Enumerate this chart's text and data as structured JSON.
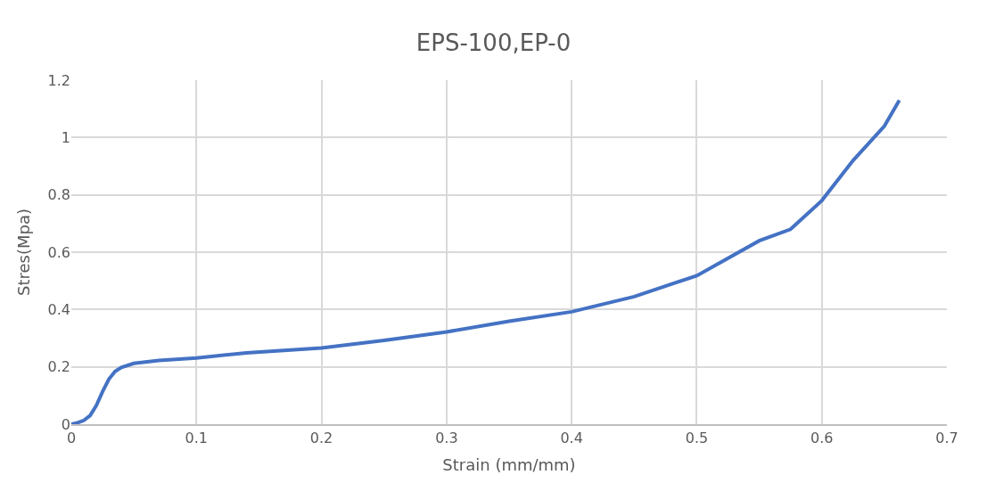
{
  "chart_data": {
    "type": "line",
    "title": "EPS-100,EP-0",
    "xlabel": "Strain (mm/mm)",
    "ylabel": "Stres(Mpa)",
    "x": [
      0,
      0.005,
      0.01,
      0.015,
      0.02,
      0.025,
      0.03,
      0.035,
      0.04,
      0.05,
      0.07,
      0.1,
      0.14,
      0.2,
      0.25,
      0.3,
      0.35,
      0.4,
      0.45,
      0.5,
      0.55,
      0.575,
      0.6,
      0.625,
      0.65,
      0.662
    ],
    "series": [
      {
        "color": "#4472c4",
        "values": [
          0,
          0.005,
          0.013,
          0.03,
          0.065,
          0.114,
          0.157,
          0.184,
          0.198,
          0.212,
          0.222,
          0.231,
          0.249,
          0.266,
          0.292,
          0.322,
          0.359,
          0.392,
          0.445,
          0.518,
          0.64,
          0.68,
          0.78,
          0.92,
          1.04,
          1.13
        ]
      }
    ],
    "xlim": [
      0,
      0.7
    ],
    "xticks": [
      0,
      0.1,
      0.2,
      0.3,
      0.4,
      0.5,
      0.6,
      0.7
    ],
    "ylim": [
      0,
      1.2
    ],
    "yticks": [
      0,
      0.2,
      0.4,
      0.6,
      0.8,
      1,
      1.2
    ],
    "grid": true,
    "marker": "none",
    "line_style": "solid"
  }
}
